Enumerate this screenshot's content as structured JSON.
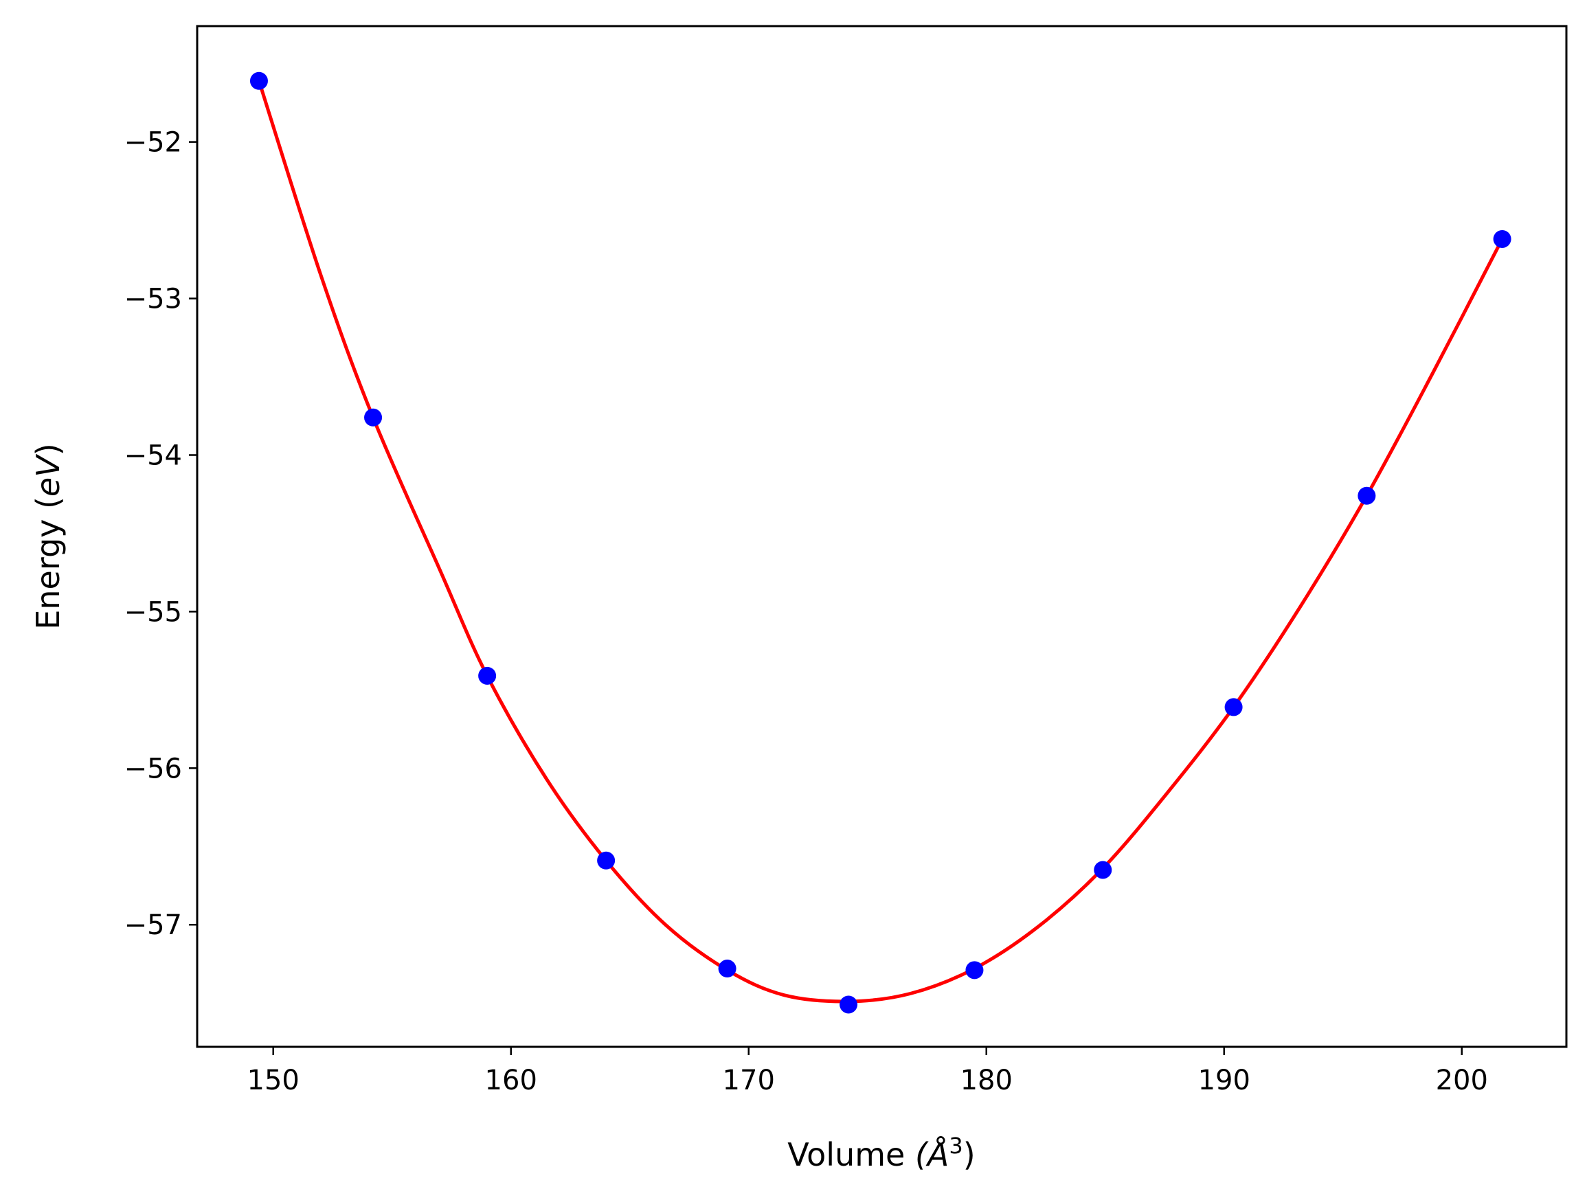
{
  "chart_data": {
    "type": "scatter",
    "title": "",
    "xlabel": "Volume",
    "xlabel_unit": "(Å",
    "xlabel_unit_exp": "3",
    "xlabel_unit_close": ")",
    "ylabel": "Energy (",
    "ylabel_unit": "eV",
    "ylabel_close": ")",
    "xlim": [
      146.8,
      204.4
    ],
    "ylim": [
      -57.78,
      -51.26
    ],
    "xticks": [
      150,
      160,
      170,
      180,
      190,
      200
    ],
    "xtick_labels": [
      "150",
      "160",
      "170",
      "180",
      "190",
      "200"
    ],
    "yticks": [
      -52,
      -53,
      -54,
      -55,
      -56,
      -57
    ],
    "ytick_labels": [
      "−52",
      "−53",
      "−54",
      "−55",
      "−56",
      "−57"
    ],
    "grid": false,
    "series": [
      {
        "kind": "points",
        "color": "#0000ff",
        "x": [
          149.4,
          154.2,
          159.0,
          164.0,
          169.1,
          174.2,
          179.5,
          184.9,
          190.4,
          196.0,
          201.7
        ],
        "y": [
          -51.61,
          -53.76,
          -55.41,
          -56.59,
          -57.28,
          -57.51,
          -57.29,
          -56.65,
          -55.61,
          -54.26,
          -52.62
        ]
      },
      {
        "kind": "fit",
        "color": "#ff0000",
        "x": [
          149.4,
          152,
          154.2,
          157,
          159.0,
          161.5,
          164.0,
          166.5,
          169.1,
          171.5,
          174.2,
          176.8,
          179.5,
          182.2,
          184.9,
          187.6,
          190.4,
          193.2,
          196.0,
          198.8,
          201.7
        ],
        "y": [
          -51.61,
          -52.85,
          -53.76,
          -54.73,
          -55.41,
          -56.07,
          -56.59,
          -57.0,
          -57.29,
          -57.45,
          -57.49,
          -57.44,
          -57.28,
          -57.01,
          -56.64,
          -56.16,
          -55.61,
          -54.97,
          -54.26,
          -53.47,
          -52.62
        ]
      }
    ]
  }
}
